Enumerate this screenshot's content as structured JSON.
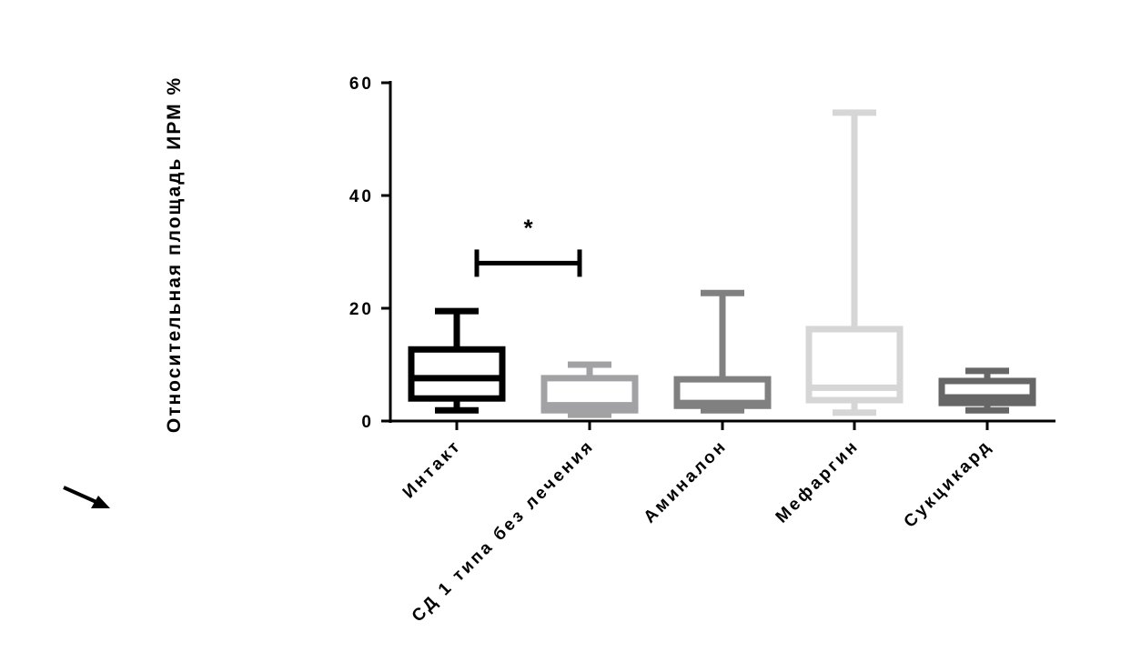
{
  "chart_data": {
    "type": "box",
    "title": "",
    "xlabel": "",
    "ylabel": "Относительная площадь ИРМ %",
    "ylim": [
      0,
      60
    ],
    "yticks": [
      0,
      20,
      40,
      60
    ],
    "grid": false,
    "categories": [
      "Интакт",
      "СД 1 типа без лечения",
      "Аминалон",
      "Мефаргин",
      "Сукцикард"
    ],
    "colors": [
      "#000000",
      "#a2a2a4",
      "#808080",
      "#d6d6d6",
      "#666666"
    ],
    "boxes": [
      {
        "min": 1.9,
        "q1": 4.0,
        "median": 7.6,
        "q3": 12.7,
        "max": 19.5
      },
      {
        "min": 1.1,
        "q1": 1.9,
        "median": 2.8,
        "q3": 7.6,
        "max": 10.0
      },
      {
        "min": 1.9,
        "q1": 2.7,
        "median": 3.2,
        "q3": 7.4,
        "max": 22.7
      },
      {
        "min": 1.5,
        "q1": 3.7,
        "median": 5.9,
        "q3": 16.3,
        "max": 54.7
      },
      {
        "min": 1.9,
        "q1": 3.2,
        "median": 4.2,
        "q3": 7.1,
        "max": 8.9
      }
    ],
    "annotations": [
      {
        "text": "*",
        "between": [
          "Интакт",
          "СД 1 типа без лечения"
        ],
        "y": 28
      }
    ]
  },
  "decorations": {
    "arrow_icon": "arrow-down-right-icon"
  }
}
